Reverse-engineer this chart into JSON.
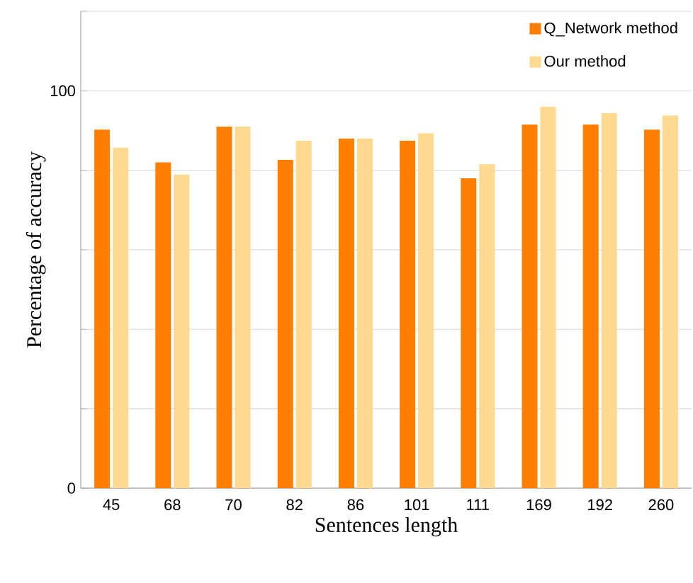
{
  "chart_data": {
    "type": "bar",
    "xlabel": "Sentences length",
    "ylabel": "Percentage of accuracy",
    "categories": [
      "45",
      "68",
      "70",
      "82",
      "86",
      "101",
      "111",
      "169",
      "192",
      "260"
    ],
    "series": [
      {
        "name": "Q_Network method",
        "color": "#ff8000",
        "values": [
          90.2,
          82,
          91,
          82.6,
          88,
          87.4,
          78,
          91.5,
          91.5,
          90.2
        ]
      },
      {
        "name": "Our method",
        "color": "#ffd990",
        "values": [
          85.7,
          78.9,
          91,
          87.4,
          88,
          89.3,
          81.5,
          96,
          94.4,
          93.8
        ]
      }
    ],
    "ylim": [
      0,
      120
    ],
    "yticks": [
      0,
      {
        "value": 20,
        "label": null
      },
      {
        "value": 40,
        "label": null
      },
      {
        "value": 60,
        "label": null
      },
      {
        "value": 80,
        "label": null
      },
      100,
      {
        "value": 120,
        "label": null
      }
    ],
    "grid": "y",
    "legend": "top right"
  }
}
